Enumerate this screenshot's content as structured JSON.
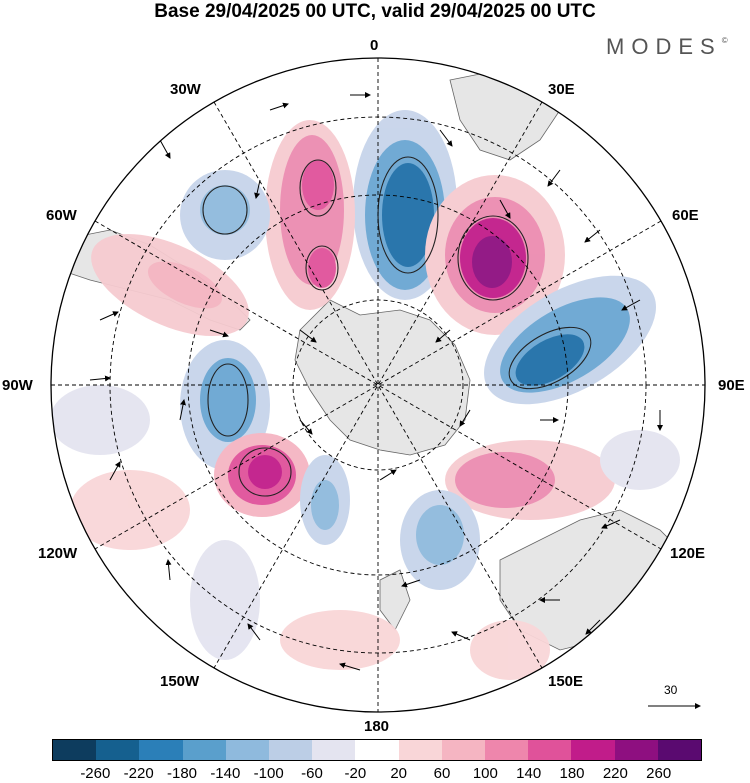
{
  "title": "Base 29/04/2025 00 UTC, valid 29/04/2025 00 UTC",
  "brand": "MODES",
  "brand_mark": "©",
  "longitude_labels": {
    "lon_0": "0",
    "lon_30e": "30E",
    "lon_60e": "60E",
    "lon_90e": "90E",
    "lon_120e": "120E",
    "lon_150e": "150E",
    "lon_180": "180",
    "lon_150w": "150W",
    "lon_120w": "120W",
    "lon_90w": "90W",
    "lon_60w": "60W",
    "lon_30w": "30W"
  },
  "reference_vector": {
    "value": "30"
  },
  "colorbar": {
    "colors": [
      "#0d3c5e",
      "#15608f",
      "#2b7fb8",
      "#5a9fcc",
      "#8fbadd",
      "#bccee6",
      "#e4e4f0",
      "#ffffff",
      "#f9d6d8",
      "#f5b5c2",
      "#ee86ac",
      "#e0529a",
      "#c11c8a",
      "#8e0f80",
      "#5a0a70"
    ],
    "tick_labels": [
      "-260",
      "-220",
      "-180",
      "-140",
      "-100",
      "-60",
      "-20",
      "20",
      "60",
      "100",
      "140",
      "180",
      "220",
      "260"
    ]
  },
  "map": {
    "projection": "south polar stereographic",
    "graticule": "dashed",
    "field_colors": {
      "strong_neg": "#1f6fa8",
      "mid_neg": "#6aa6d2",
      "weak_neg": "#c7d4ea",
      "weak_pos": "#f6cbd0",
      "mid_pos": "#ec8cb0",
      "strong_pos": "#a8127f",
      "land": "#e8e8e8"
    }
  }
}
